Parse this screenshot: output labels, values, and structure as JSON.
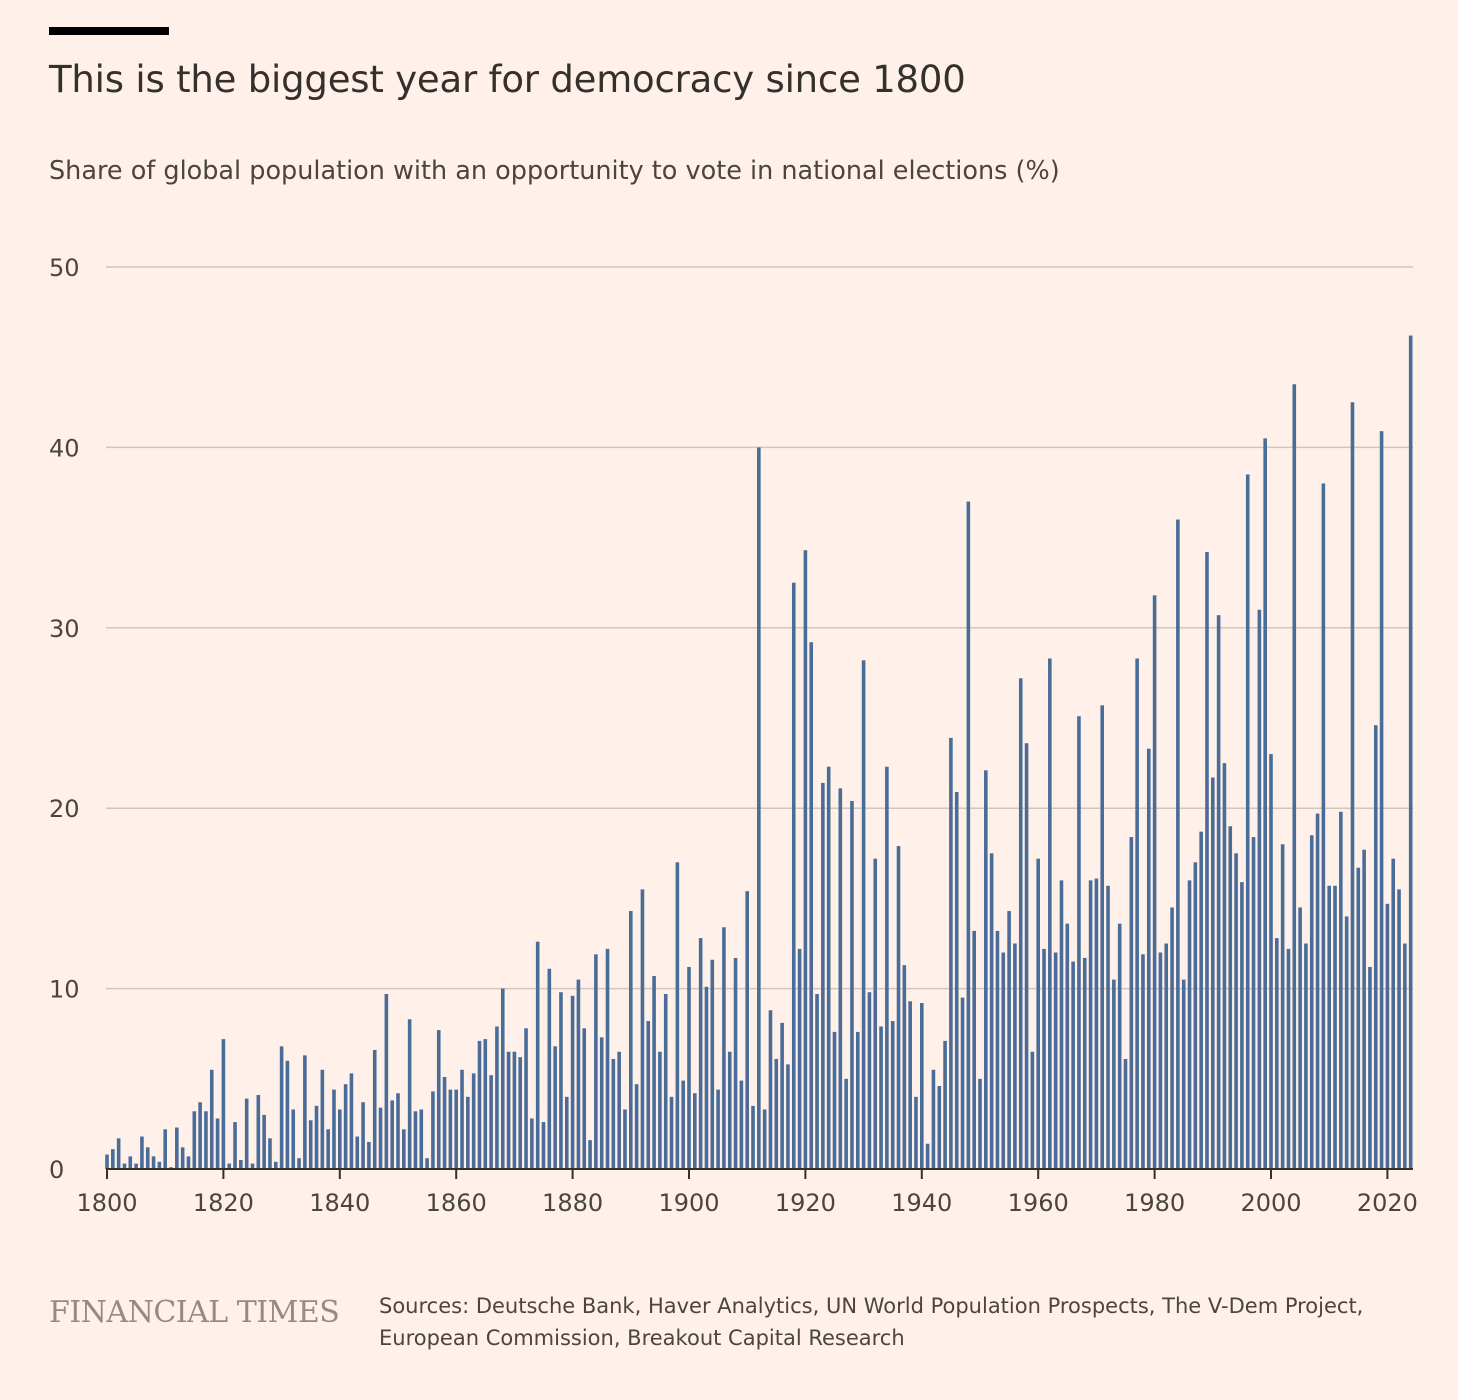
{
  "header": {
    "title": "This is the biggest year for democracy since 1800",
    "subtitle": "Share of global population with an opportunity to vote in national elections (%)"
  },
  "footer": {
    "brand": "FINANCIAL TIMES",
    "source": "Sources: Deutsche Bank, Haver Analytics, UN World Population Prospects, The V-Dem Project, European Commission, Breakout Capital Research"
  },
  "colors": {
    "background": "#FFF1E9",
    "bar": "#4A6C98",
    "grid": "#CFC6BE",
    "axis": "#33302E",
    "text": "#4A4542"
  },
  "chart_data": {
    "type": "bar",
    "title": "This is the biggest year for democracy since 1800",
    "subtitle": "Share of global population with an opportunity to vote in national elections (%)",
    "xlabel": "",
    "ylabel": "",
    "x_start": 1800,
    "x_end": 2024,
    "xlim": [
      1800,
      2024
    ],
    "ylim": [
      0,
      50
    ],
    "y_ticks": [
      0,
      10,
      20,
      30,
      40,
      50
    ],
    "x_ticks": [
      1800,
      1820,
      1840,
      1860,
      1880,
      1900,
      1920,
      1940,
      1960,
      1980,
      2000,
      2020
    ],
    "grid": true,
    "legend": "none",
    "values": [
      0.8,
      1.1,
      1.7,
      0.3,
      0.7,
      0.3,
      1.8,
      1.2,
      0.7,
      0.4,
      2.2,
      0.1,
      2.3,
      1.2,
      0.7,
      3.2,
      3.7,
      3.2,
      5.5,
      2.8,
      7.2,
      0.3,
      2.6,
      0.5,
      3.9,
      0.3,
      4.1,
      3.0,
      1.7,
      0.4,
      6.8,
      6.0,
      3.3,
      0.6,
      6.3,
      2.7,
      3.5,
      5.5,
      2.2,
      4.4,
      3.3,
      4.7,
      5.3,
      1.8,
      3.7,
      1.5,
      6.6,
      3.4,
      9.7,
      3.8,
      4.2,
      2.2,
      8.3,
      3.2,
      3.3,
      0.6,
      4.3,
      7.7,
      5.1,
      4.4,
      4.4,
      5.5,
      4.0,
      5.3,
      7.1,
      7.2,
      5.2,
      7.9,
      10.0,
      6.5,
      6.5,
      6.2,
      7.8,
      2.8,
      12.6,
      2.6,
      11.1,
      6.8,
      9.8,
      4.0,
      9.6,
      10.5,
      7.8,
      1.6,
      11.9,
      7.3,
      12.2,
      6.1,
      6.5,
      3.3,
      14.3,
      4.7,
      15.5,
      8.2,
      10.7,
      6.5,
      9.7,
      4.0,
      17.0,
      4.9,
      11.2,
      4.2,
      12.8,
      10.1,
      11.6,
      4.4,
      13.4,
      6.5,
      11.7,
      4.9,
      15.4,
      3.5,
      40.0,
      3.3,
      8.8,
      6.1,
      8.1,
      5.8,
      32.5,
      12.2,
      34.3,
      29.2,
      9.7,
      21.4,
      22.3,
      7.6,
      21.1,
      5.0,
      20.4,
      7.6,
      28.2,
      9.8,
      17.2,
      7.9,
      22.3,
      8.2,
      17.9,
      11.3,
      9.3,
      4.0,
      9.2,
      1.4,
      5.5,
      4.6,
      7.1,
      23.9,
      20.9,
      9.5,
      37.0,
      13.2,
      5.0,
      22.1,
      17.5,
      13.2,
      12.0,
      14.3,
      12.5,
      27.2,
      23.6,
      6.5,
      17.2,
      12.2,
      28.3,
      12.0,
      16.0,
      13.6,
      11.5,
      25.1,
      11.7,
      16.0,
      16.1,
      25.7,
      15.7,
      10.5,
      13.6,
      6.1,
      18.4,
      28.3,
      11.9,
      23.3,
      31.8,
      12.0,
      12.5,
      14.5,
      36.0,
      10.5,
      16.0,
      17.0,
      18.7,
      34.2,
      21.7,
      30.7,
      22.5,
      19.0,
      17.5,
      15.9,
      38.5,
      18.4,
      31.0,
      40.5,
      23.0,
      12.8,
      18.0,
      12.2,
      43.5,
      14.5,
      12.5,
      18.5,
      19.7,
      38.0,
      15.7,
      15.7,
      19.8,
      14.0,
      42.5,
      16.7,
      17.7,
      11.2,
      24.6,
      40.9,
      14.7,
      17.2,
      15.5,
      12.5,
      46.2
    ]
  }
}
